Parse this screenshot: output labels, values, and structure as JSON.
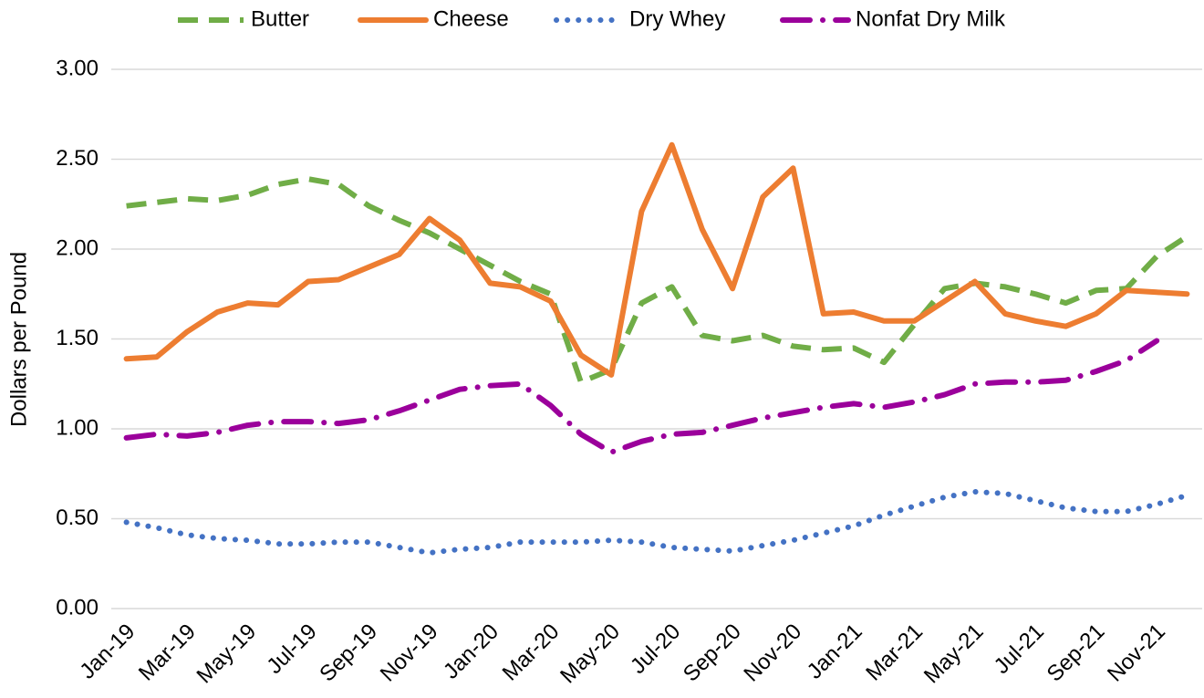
{
  "chart_data": {
    "type": "line",
    "ylabel": "Dollars per Pound",
    "categories": [
      "Jan-19",
      null,
      "Mar-19",
      null,
      "May-19",
      null,
      "Jul-19",
      null,
      "Sep-19",
      null,
      "Nov-19",
      null,
      "Jan-20",
      null,
      "Mar-20",
      null,
      "May-20",
      null,
      "Jul-20",
      null,
      "Sep-20",
      null,
      "Nov-20",
      null,
      "Jan-21",
      null,
      "Mar-21",
      null,
      "May-21",
      null,
      "Jul-21",
      null,
      "Sep-21",
      null,
      "Nov-21",
      null
    ],
    "series": [
      {
        "name": "Butter",
        "color": "#70ad47",
        "dash": "dashed",
        "values": [
          2.24,
          2.26,
          2.28,
          2.27,
          2.3,
          2.36,
          2.39,
          2.36,
          2.24,
          2.16,
          2.09,
          2.0,
          1.91,
          1.82,
          1.75,
          1.26,
          1.33,
          1.7,
          1.79,
          1.52,
          1.49,
          1.52,
          1.46,
          1.44,
          1.45,
          1.37,
          1.58,
          1.78,
          1.81,
          1.79,
          1.75,
          1.7,
          1.77,
          1.78,
          1.96,
          2.07
        ]
      },
      {
        "name": "Cheese",
        "color": "#ed7d31",
        "dash": "solid",
        "values": [
          1.39,
          1.4,
          1.54,
          1.65,
          1.7,
          1.69,
          1.82,
          1.83,
          1.9,
          1.97,
          2.17,
          2.05,
          1.81,
          1.79,
          1.71,
          1.41,
          1.3,
          2.21,
          2.58,
          2.11,
          1.78,
          2.29,
          2.45,
          1.64,
          1.65,
          1.6,
          1.6,
          1.71,
          1.82,
          1.64,
          1.6,
          1.57,
          1.64,
          1.77,
          1.76,
          1.75
        ]
      },
      {
        "name": "Dry Whey",
        "color": "#4472c4",
        "dash": "dotted",
        "values": [
          0.48,
          0.45,
          0.41,
          0.39,
          0.38,
          0.36,
          0.36,
          0.37,
          0.37,
          0.34,
          0.31,
          0.33,
          0.34,
          0.37,
          0.37,
          0.37,
          0.38,
          0.37,
          0.34,
          0.33,
          0.32,
          0.35,
          0.38,
          0.42,
          0.46,
          0.52,
          0.57,
          0.62,
          0.65,
          0.64,
          0.6,
          0.56,
          0.54,
          0.54,
          0.58,
          0.63
        ]
      },
      {
        "name": "Nonfat Dry Milk",
        "color": "#9b009b",
        "dash": "dashdot",
        "values": [
          0.95,
          0.97,
          0.96,
          0.98,
          1.02,
          1.04,
          1.04,
          1.03,
          1.05,
          1.1,
          1.16,
          1.22,
          1.24,
          1.25,
          1.13,
          0.97,
          0.87,
          0.93,
          0.97,
          0.98,
          1.02,
          1.06,
          1.09,
          1.12,
          1.14,
          1.12,
          1.15,
          1.19,
          1.25,
          1.26,
          1.26,
          1.27,
          1.32,
          1.38,
          1.49,
          null
        ]
      }
    ],
    "ylim": [
      0,
      3
    ],
    "yticks": [
      {
        "value": 0,
        "label": "0.00"
      },
      {
        "value": 0.5,
        "label": "0.50"
      },
      {
        "value": 1,
        "label": "1.00"
      },
      {
        "value": 1.5,
        "label": "1.50"
      },
      {
        "value": 2,
        "label": "2.00"
      },
      {
        "value": 2.5,
        "label": "2.50"
      },
      {
        "value": 3,
        "label": "3.00"
      }
    ],
    "grid": true,
    "legend": "top"
  }
}
